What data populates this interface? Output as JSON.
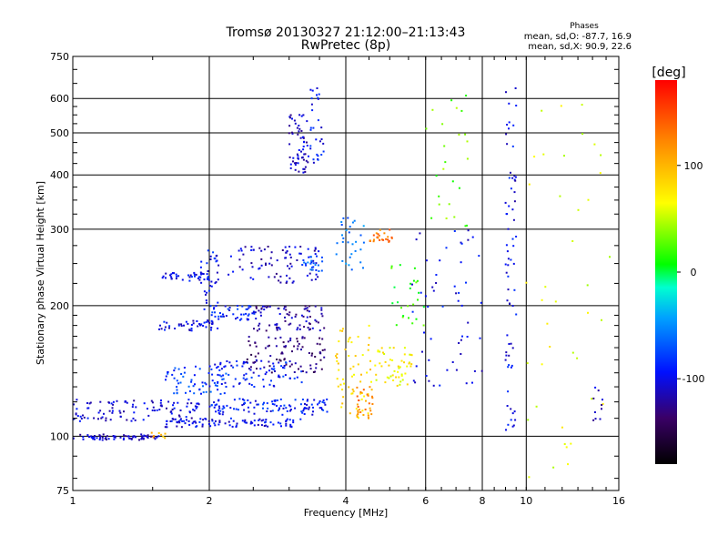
{
  "title_line1": "Tromsø 20130327 21:12:00–21:13:43",
  "title_line2": "RwPretec (8p)",
  "stats": {
    "header": "Phases",
    "line1": "mean, sd,O: -87.7, 16.9",
    "line2": "mean, sd,X:  90.9, 22.6"
  },
  "colorbar": {
    "unit_label": "[deg]",
    "min": -180,
    "max": 180,
    "ticks": [
      {
        "value": 100,
        "label": "100"
      },
      {
        "value": 0,
        "label": "0"
      },
      {
        "value": -100,
        "label": "-100"
      }
    ]
  },
  "chart_data": {
    "type": "scatter",
    "xlabel": "Frequency [MHz]",
    "ylabel": "Stationary phase Virtual Height [km]",
    "x_scale": "log",
    "y_scale": "log",
    "xlim": [
      1,
      16
    ],
    "ylim": [
      75,
      750
    ],
    "grid": true,
    "x_ticks": [
      {
        "value": 1,
        "label": "1"
      },
      {
        "value": 2,
        "label": "2"
      },
      {
        "value": 4,
        "label": "4"
      },
      {
        "value": 6,
        "label": "6"
      },
      {
        "value": 8,
        "label": "8"
      },
      {
        "value": 10,
        "label": "10"
      },
      {
        "value": 16,
        "label": "16"
      }
    ],
    "y_ticks": [
      {
        "value": 75,
        "label": "75"
      },
      {
        "value": 100,
        "label": "100"
      },
      {
        "value": 200,
        "label": "200"
      },
      {
        "value": 300,
        "label": "300"
      },
      {
        "value": 400,
        "label": "400"
      },
      {
        "value": 500,
        "label": "500"
      },
      {
        "value": 600,
        "label": "600"
      },
      {
        "value": 750,
        "label": "750"
      }
    ],
    "color_variable": "phase [deg]",
    "clusters": [
      {
        "x_range": [
          1.0,
          1.55
        ],
        "y_range": [
          98,
          101
        ],
        "phase": -110,
        "n": 70
      },
      {
        "x_range": [
          1.45,
          1.6
        ],
        "y_range": [
          99,
          102
        ],
        "phase": 100,
        "n": 8
      },
      {
        "x_range": [
          1.0,
          1.9
        ],
        "y_range": [
          108,
          122
        ],
        "phase": -105,
        "n": 110
      },
      {
        "x_range": [
          1.6,
          3.2
        ],
        "y_range": [
          105,
          110
        ],
        "phase": -100,
        "n": 90
      },
      {
        "x_range": [
          2.0,
          3.7
        ],
        "y_range": [
          112,
          122
        ],
        "phase": -90,
        "n": 110
      },
      {
        "x_range": [
          1.6,
          2.2
        ],
        "y_range": [
          125,
          145
        ],
        "phase": -80,
        "n": 60
      },
      {
        "x_range": [
          2.0,
          3.2
        ],
        "y_range": [
          130,
          150
        ],
        "phase": -90,
        "n": 80
      },
      {
        "x_range": [
          2.4,
          3.6
        ],
        "y_range": [
          140,
          170
        ],
        "phase": -130,
        "n": 90
      },
      {
        "x_range": [
          1.55,
          2.1
        ],
        "y_range": [
          175,
          185
        ],
        "phase": -100,
        "n": 45
      },
      {
        "x_range": [
          2.0,
          2.6
        ],
        "y_range": [
          185,
          200
        ],
        "phase": -90,
        "n": 45
      },
      {
        "x_range": [
          2.5,
          3.6
        ],
        "y_range": [
          175,
          200
        ],
        "phase": -120,
        "n": 80
      },
      {
        "x_range": [
          1.55,
          2.0
        ],
        "y_range": [
          228,
          238
        ],
        "phase": -100,
        "n": 40
      },
      {
        "x_range": [
          1.9,
          2.1
        ],
        "y_range": [
          190,
          270
        ],
        "phase": -95,
        "n": 35
      },
      {
        "x_range": [
          2.2,
          3.5
        ],
        "y_range": [
          225,
          275
        ],
        "phase": -110,
        "n": 80
      },
      {
        "x_range": [
          3.2,
          3.6
        ],
        "y_range": [
          240,
          260
        ],
        "phase": -70,
        "n": 25
      },
      {
        "x_range": [
          3.0,
          3.3
        ],
        "y_range": [
          400,
          560
        ],
        "phase": -110,
        "n": 60
      },
      {
        "x_range": [
          3.3,
          3.6
        ],
        "y_range": [
          410,
          640
        ],
        "phase": -95,
        "n": 30
      },
      {
        "x_range": [
          3.8,
          4.6
        ],
        "y_range": [
          110,
          180
        ],
        "phase": 80,
        "n": 60
      },
      {
        "x_range": [
          4.2,
          4.6
        ],
        "y_range": [
          110,
          130
        ],
        "phase": 120,
        "n": 30
      },
      {
        "x_range": [
          4.6,
          5.6
        ],
        "y_range": [
          130,
          160
        ],
        "phase": 70,
        "n": 50
      },
      {
        "x_range": [
          3.8,
          4.4
        ],
        "y_range": [
          240,
          320
        ],
        "phase": -60,
        "n": 30
      },
      {
        "x_range": [
          4.5,
          5.1
        ],
        "y_range": [
          280,
          300
        ],
        "phase": 130,
        "n": 25
      },
      {
        "x_range": [
          5.0,
          6.0
        ],
        "y_range": [
          170,
          260
        ],
        "phase": 20,
        "n": 25
      },
      {
        "x_range": [
          5.6,
          8.0
        ],
        "y_range": [
          130,
          300
        ],
        "phase": -100,
        "n": 55
      },
      {
        "x_range": [
          6.0,
          7.5
        ],
        "y_range": [
          300,
          650
        ],
        "phase": 30,
        "n": 25
      },
      {
        "x_range": [
          9.0,
          9.5
        ],
        "y_range": [
          100,
          650
        ],
        "phase": -100,
        "n": 70
      },
      {
        "x_range": [
          10.0,
          15.5
        ],
        "y_range": [
          80,
          650
        ],
        "phase": 60,
        "n": 40
      },
      {
        "x_range": [
          14.0,
          14.8
        ],
        "y_range": [
          100,
          130
        ],
        "phase": -110,
        "n": 10
      }
    ]
  }
}
